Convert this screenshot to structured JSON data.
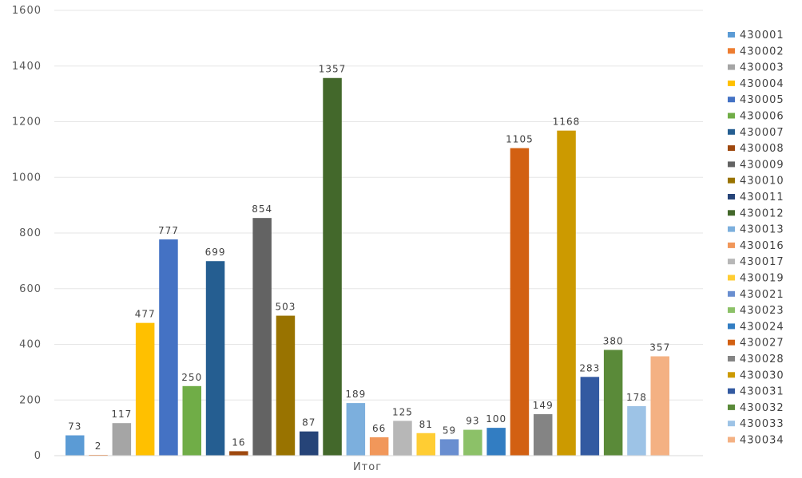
{
  "chart_data": {
    "type": "bar",
    "categories": [
      "Итог"
    ],
    "ylim": [
      0,
      1600
    ],
    "yticks": [
      0,
      200,
      400,
      600,
      800,
      1000,
      1200,
      1400,
      1600
    ],
    "grid": true,
    "legend_position": "right",
    "series": [
      {
        "name": "430001",
        "values": [
          73
        ],
        "color": "#5B9BD5"
      },
      {
        "name": "430002",
        "values": [
          2
        ],
        "color": "#ED7D31"
      },
      {
        "name": "430003",
        "values": [
          117
        ],
        "color": "#A5A5A5"
      },
      {
        "name": "430004",
        "values": [
          477
        ],
        "color": "#FFC000"
      },
      {
        "name": "430005",
        "values": [
          777
        ],
        "color": "#4472C4"
      },
      {
        "name": "430006",
        "values": [
          250
        ],
        "color": "#70AD47"
      },
      {
        "name": "430007",
        "values": [
          699
        ],
        "color": "#255E91"
      },
      {
        "name": "430008",
        "values": [
          16
        ],
        "color": "#9E480E"
      },
      {
        "name": "430009",
        "values": [
          854
        ],
        "color": "#636363"
      },
      {
        "name": "430010",
        "values": [
          503
        ],
        "color": "#997300"
      },
      {
        "name": "430011",
        "values": [
          87
        ],
        "color": "#264478"
      },
      {
        "name": "430012",
        "values": [
          1357
        ],
        "color": "#43682B"
      },
      {
        "name": "430013",
        "values": [
          189
        ],
        "color": "#7CAFDD"
      },
      {
        "name": "430016",
        "values": [
          66
        ],
        "color": "#F1975A"
      },
      {
        "name": "430017",
        "values": [
          125
        ],
        "color": "#B7B7B7"
      },
      {
        "name": "430019",
        "values": [
          81
        ],
        "color": "#FFCD33"
      },
      {
        "name": "430021",
        "values": [
          59
        ],
        "color": "#698ED0"
      },
      {
        "name": "430023",
        "values": [
          93
        ],
        "color": "#8CC168"
      },
      {
        "name": "430024",
        "values": [
          100
        ],
        "color": "#327DC2"
      },
      {
        "name": "430027",
        "values": [
          1105
        ],
        "color": "#D26012"
      },
      {
        "name": "430028",
        "values": [
          149
        ],
        "color": "#848484"
      },
      {
        "name": "430030",
        "values": [
          1168
        ],
        "color": "#CC9A00"
      },
      {
        "name": "430031",
        "values": [
          283
        ],
        "color": "#335AA1"
      },
      {
        "name": "430032",
        "values": [
          380
        ],
        "color": "#5A8A39"
      },
      {
        "name": "430033",
        "values": [
          178
        ],
        "color": "#9DC3E6"
      },
      {
        "name": "430034",
        "values": [
          357
        ],
        "color": "#F4B183"
      }
    ]
  }
}
